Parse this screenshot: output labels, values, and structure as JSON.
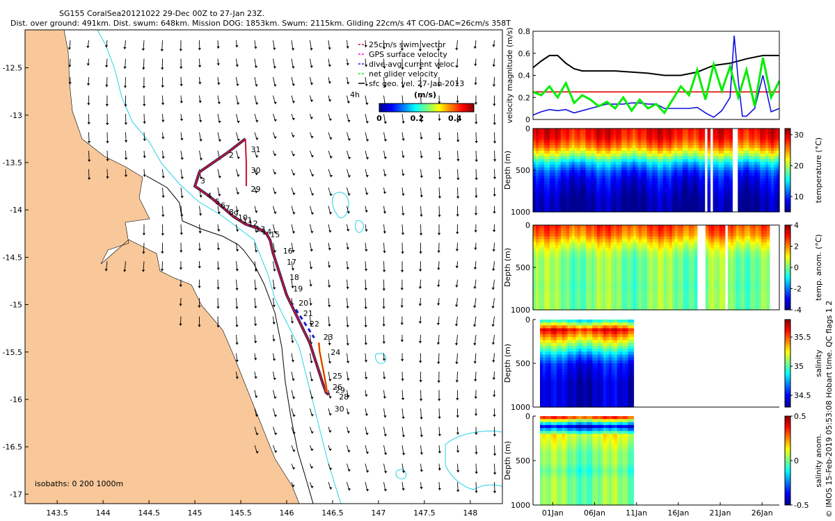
{
  "title": {
    "line1": "SG155 CoralSea20121022 29-Dec 00Z to 27-Jan 23Z.",
    "line2": "Dist. over ground: 491km. Dist. swum: 648km. Mission DOG: 1853km. Swum: 2115km. Gliding 22cm/s 4T COG-DAC=26cm/s 358T"
  },
  "credit": "© IMOS 15-Feb-2019 05:53:08 Hobart time. QC flags 1  2",
  "colors": {
    "land": "#f8c89a",
    "ocean": "#ffffff",
    "coast_line": "#000000",
    "isobath_200": "#000000",
    "isobath_1000": "#22d3e8",
    "track": "#c8102e",
    "dac": "#1b1bd0",
    "net": "#00ee00",
    "gps": "#ff00ff",
    "cmap": [
      "#00008f",
      "#0000ff",
      "#007fff",
      "#00ffff",
      "#7fff7f",
      "#ffff00",
      "#ff7f00",
      "#ff0000",
      "#7f0000"
    ]
  },
  "chart_data": [
    {
      "type": "map",
      "name": "glider-track-map",
      "xlim": [
        143.15,
        148.35
      ],
      "ylim": [
        -17.1,
        -12.1
      ],
      "x_ticks": [
        143.5,
        144,
        144.5,
        145,
        145.5,
        146,
        146.5,
        147,
        147.5,
        148
      ],
      "x_tick_labels": [
        "143.5",
        "144",
        "144.5",
        "145",
        "145.5",
        "146",
        "146.5",
        "147",
        "147.5",
        "148"
      ],
      "y_ticks": [
        -12.5,
        -13,
        -13.5,
        -14,
        -14.5,
        -15,
        -15.5,
        -16,
        -16.5,
        -17
      ],
      "y_tick_labels": [
        "-12.5",
        "-13",
        "-13.5",
        "-14",
        "-14.5",
        "-15",
        "-15.5",
        "-16",
        "-16.5",
        "-17"
      ],
      "legend": {
        "position": "top-right",
        "entries": [
          "25cm/s swim vector",
          "GPS surface velocity",
          "dive-avg current veloc.",
          "net glider velocity",
          "sfc geo. vel. 27-Jan-2013"
        ]
      },
      "colorbar": {
        "unit": "(m/s)",
        "ticks": [
          0,
          0.2,
          0.4
        ],
        "tick_labels": [
          "0",
          "0.2",
          "0.4"
        ],
        "side_label": "4h",
        "range": [
          0,
          0.5
        ]
      },
      "isobath_note": "isobaths: 0   200   1000m",
      "track_lon": [
        145.55,
        145.35,
        145.05,
        145.0,
        145.15,
        145.3,
        145.42,
        145.55,
        145.7,
        145.78,
        145.82,
        145.85,
        145.9,
        145.95,
        146.0,
        146.05,
        146.1,
        146.15,
        146.2,
        146.25,
        146.3,
        146.35,
        146.4,
        146.42,
        146.43,
        146.46
      ],
      "track_lat": [
        -13.25,
        -13.4,
        -13.6,
        -13.75,
        -13.85,
        -13.97,
        -14.07,
        -14.15,
        -14.2,
        -14.25,
        -14.32,
        -14.45,
        -14.6,
        -14.75,
        -14.9,
        -15.0,
        -15.1,
        -15.2,
        -15.3,
        -15.4,
        -15.55,
        -15.7,
        -15.85,
        -15.9,
        -15.93,
        -15.95
      ],
      "track_branch_lon": [
        145.55,
        145.56,
        145.56
      ],
      "track_branch_lat": [
        -13.25,
        -13.5,
        -13.75
      ],
      "yoyo_lon": [
        146.35,
        146.36,
        146.38,
        146.4,
        146.42,
        146.44
      ],
      "yoyo_lat": [
        -15.4,
        -15.5,
        -15.6,
        -15.7,
        -15.8,
        -15.92
      ],
      "day_labels": [
        {
          "text": "31",
          "lon": 145.61,
          "lat": -13.36
        },
        {
          "text": "2",
          "lon": 145.37,
          "lat": -13.42
        },
        {
          "text": "30",
          "lon": 145.61,
          "lat": -13.58
        },
        {
          "text": "3",
          "lon": 145.06,
          "lat": -13.69
        },
        {
          "text": "29",
          "lon": 145.61,
          "lat": -13.78
        },
        {
          "text": "4",
          "lon": 145.13,
          "lat": -13.85
        },
        {
          "text": "5",
          "lon": 145.22,
          "lat": -13.91
        },
        {
          "text": "6",
          "lon": 145.28,
          "lat": -13.95
        },
        {
          "text": "7",
          "lon": 145.33,
          "lat": -13.98
        },
        {
          "text": "8",
          "lon": 145.37,
          "lat": -14.02
        },
        {
          "text": "9",
          "lon": 145.42,
          "lat": -14.04
        },
        {
          "text": "10",
          "lon": 145.47,
          "lat": -14.08
        },
        {
          "text": "11",
          "lon": 145.52,
          "lat": -14.11
        },
        {
          "text": "12",
          "lon": 145.58,
          "lat": -14.14
        },
        {
          "text": "13",
          "lon": 145.66,
          "lat": -14.2
        },
        {
          "text": "14",
          "lon": 145.73,
          "lat": -14.23
        },
        {
          "text": "15",
          "lon": 145.82,
          "lat": -14.26
        },
        {
          "text": "16",
          "lon": 145.96,
          "lat": -14.43
        },
        {
          "text": "17",
          "lon": 146.0,
          "lat": -14.55
        },
        {
          "text": "18",
          "lon": 146.03,
          "lat": -14.71
        },
        {
          "text": "19",
          "lon": 146.07,
          "lat": -14.83
        },
        {
          "text": "20",
          "lon": 146.13,
          "lat": -14.98
        },
        {
          "text": "21",
          "lon": 146.18,
          "lat": -15.09
        },
        {
          "text": "22",
          "lon": 146.25,
          "lat": -15.2
        },
        {
          "text": "23",
          "lon": 146.4,
          "lat": -15.34
        },
        {
          "text": "24",
          "lon": 146.48,
          "lat": -15.5
        },
        {
          "text": "25",
          "lon": 146.5,
          "lat": -15.75
        },
        {
          "text": "26",
          "lon": 146.5,
          "lat": -15.87
        },
        {
          "text": "29",
          "lon": 146.53,
          "lat": -15.9
        },
        {
          "text": "28",
          "lon": 146.57,
          "lat": -15.97
        },
        {
          "text": "30",
          "lon": 146.52,
          "lat": -16.1
        }
      ]
    },
    {
      "type": "line",
      "name": "velocity-magnitude",
      "ylabel": "velocity magnitude (m/s)",
      "ylim": [
        0,
        0.8
      ],
      "y_ticks": [
        0,
        0.2,
        0.4,
        0.6,
        0.8
      ],
      "y_tick_labels": [
        "0",
        "0.2",
        "0.4",
        "0.6",
        "0.8"
      ],
      "xlim": [
        0,
        30
      ],
      "series": [
        {
          "name": "swim speed (black)",
          "color": "#000000",
          "x": [
            0,
            1,
            2,
            3,
            4,
            5,
            6,
            8,
            10,
            12,
            14,
            16,
            18,
            20,
            22,
            24,
            26,
            28,
            30
          ],
          "values": [
            0.47,
            0.53,
            0.58,
            0.58,
            0.51,
            0.46,
            0.44,
            0.44,
            0.44,
            0.43,
            0.42,
            0.4,
            0.4,
            0.43,
            0.49,
            0.51,
            0.55,
            0.58,
            0.58
          ]
        },
        {
          "name": "reference 0.25 (red)",
          "color": "#e00000",
          "x": [
            0,
            30
          ],
          "values": [
            0.25,
            0.25
          ]
        },
        {
          "name": "dive-avg current (blue)",
          "color": "#1010e0",
          "x": [
            0,
            1,
            2,
            3,
            4,
            5,
            6,
            7,
            8,
            9,
            10,
            11,
            12,
            13,
            14,
            15,
            16,
            17,
            18,
            19,
            20,
            21,
            22,
            23,
            24,
            24.5,
            25,
            25.5,
            26,
            27,
            28,
            29,
            30
          ],
          "values": [
            0.04,
            0.07,
            0.09,
            0.08,
            0.09,
            0.06,
            0.08,
            0.1,
            0.12,
            0.14,
            0.14,
            0.14,
            0.15,
            0.15,
            0.14,
            0.14,
            0.1,
            0.1,
            0.1,
            0.1,
            0.11,
            0.06,
            0.02,
            0.08,
            0.2,
            0.76,
            0.35,
            0.03,
            0.03,
            0.1,
            0.4,
            0.07,
            0.1
          ]
        },
        {
          "name": "net glider velocity (green)",
          "color": "#00ee00",
          "x": [
            0,
            1,
            2,
            3,
            4,
            5,
            6,
            7,
            8,
            9,
            10,
            11,
            12,
            13,
            14,
            15,
            16,
            17,
            18,
            19,
            20,
            21,
            22,
            23,
            24,
            25,
            26,
            27,
            28,
            29,
            30
          ],
          "values": [
            0.25,
            0.22,
            0.3,
            0.2,
            0.33,
            0.15,
            0.22,
            0.18,
            0.12,
            0.16,
            0.1,
            0.2,
            0.08,
            0.18,
            0.1,
            0.14,
            0.06,
            0.18,
            0.3,
            0.22,
            0.45,
            0.18,
            0.5,
            0.26,
            0.48,
            0.2,
            0.45,
            0.12,
            0.56,
            0.2,
            0.35
          ]
        }
      ]
    },
    {
      "type": "heatmap",
      "name": "temperature-section",
      "ylabel": "Depth (m)",
      "ylim": [
        0,
        1000
      ],
      "y_ticks": [
        0,
        500,
        1000
      ],
      "y_tick_labels": [
        "0",
        "500",
        "1000"
      ],
      "colorbar_label": "temperature (°C)",
      "colorbar_range": [
        5,
        32
      ],
      "colorbar_ticks": [
        10,
        20,
        30
      ],
      "colorbar_tick_labels": [
        "10",
        "20",
        "30"
      ],
      "depth_profile": [
        29,
        28,
        25,
        20,
        14,
        10,
        8,
        7,
        6,
        5.5
      ],
      "x_extent_fraction": 1.0,
      "gap_fractions": [
        0.7,
        0.72,
        0.81,
        0.82
      ]
    },
    {
      "type": "heatmap",
      "name": "temperature-anomaly-section",
      "ylabel": "Depth (m)",
      "ylim": [
        0,
        1000
      ],
      "y_ticks": [
        0,
        500,
        1000
      ],
      "y_tick_labels": [
        "0",
        "500",
        "1000"
      ],
      "colorbar_label": "temp. anom. (°C)",
      "colorbar_range": [
        -4,
        4
      ],
      "colorbar_ticks": [
        4,
        2,
        0,
        -2,
        -4
      ],
      "colorbar_tick_labels": [
        "4",
        "2",
        "0",
        "-2",
        "-4"
      ],
      "depth_profile": [
        2.5,
        2.0,
        1.0,
        0.3,
        0.0,
        0.0,
        0.0,
        -0.1,
        0.0,
        0.0
      ],
      "x_extent_fraction": 0.96,
      "gap_fractions": [
        0.7,
        0.72,
        0.81
      ]
    },
    {
      "type": "heatmap",
      "name": "salinity-section",
      "ylabel": "Depth (m)",
      "ylim": [
        0,
        1000
      ],
      "y_ticks": [
        0,
        500,
        1000
      ],
      "y_tick_labels": [
        "0",
        "500",
        "1000"
      ],
      "colorbar_label": "salinity",
      "colorbar_range": [
        34.3,
        35.8
      ],
      "colorbar_ticks": [
        35.5,
        35,
        34.5
      ],
      "colorbar_tick_labels": [
        "35.5",
        "35",
        "34.5"
      ],
      "depth_profile": [
        34.9,
        35.6,
        35.3,
        35.0,
        34.7,
        34.5,
        34.45,
        34.4,
        34.4,
        34.4
      ],
      "x_extent_fraction": 0.38,
      "gap_fractions": []
    },
    {
      "type": "heatmap",
      "name": "salinity-anomaly-section",
      "ylabel": "Depth (m)",
      "ylim": [
        0,
        1000
      ],
      "y_ticks": [
        0,
        500,
        1000
      ],
      "y_tick_labels": [
        "0",
        "500",
        "1000"
      ],
      "colorbar_label": "salinity anom.",
      "colorbar_range": [
        -0.5,
        0.5
      ],
      "colorbar_ticks": [
        0.5,
        0,
        -0.5
      ],
      "colorbar_tick_labels": [
        "0.5",
        "0",
        "-0.5"
      ],
      "depth_profile": [
        0.3,
        -0.4,
        0.1,
        0.05,
        0.0,
        0.0,
        -0.05,
        0.0,
        0.0,
        0.0
      ],
      "x_extent_fraction": 0.38,
      "gap_fractions": []
    }
  ],
  "time_axis": {
    "tick_labels": [
      "01Jan",
      "06Jan",
      "11Jan",
      "16Jan",
      "21Jan",
      "26Jan"
    ],
    "tick_fractions": [
      0.08,
      0.25,
      0.42,
      0.59,
      0.76,
      0.93
    ]
  }
}
